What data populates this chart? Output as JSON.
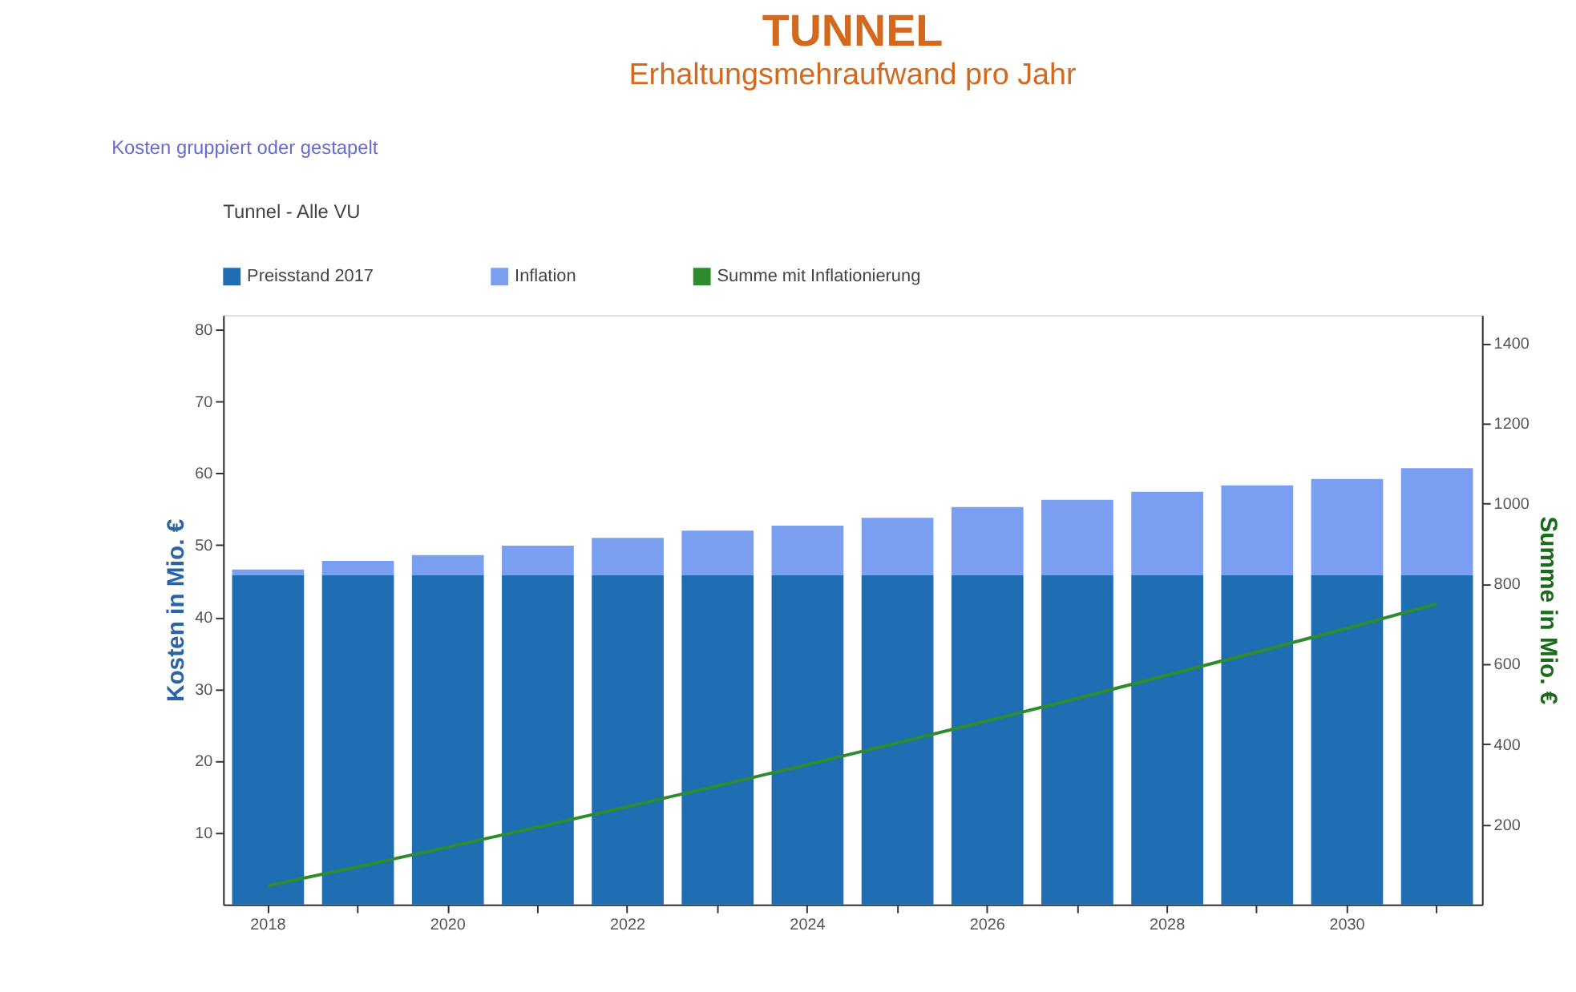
{
  "chart_data": {
    "type": "bar",
    "title": "TUNNEL",
    "subtitle": "Erhaltungsmehraufwand pro Jahr",
    "annotations": [
      "Kosten gruppiert oder gestapelt",
      "Tunnel - Alle VU"
    ],
    "ylabel": "Kosten in Mio. €",
    "y2label": "Summe in Mio. €",
    "categories": [
      "2018",
      null,
      "2020",
      null,
      "2022",
      null,
      "2024",
      null,
      "2026",
      null,
      "2028",
      null,
      "2030",
      null
    ],
    "stacked": true,
    "series": [
      {
        "name": "Preisstand 2017",
        "color": "#1f6db3",
        "values": [
          45.8,
          45.8,
          45.8,
          45.8,
          45.8,
          45.8,
          45.8,
          45.8,
          45.8,
          45.8,
          45.8,
          45.8,
          45.8,
          45.8
        ]
      },
      {
        "name": "Inflation",
        "color": "#7b9ff0",
        "values": [
          0.8,
          2.0,
          2.8,
          4.1,
          5.2,
          6.2,
          6.9,
          8.0,
          9.5,
          10.5,
          11.6,
          12.5,
          13.4,
          14.9
        ]
      },
      {
        "name": "Summe mit Inflationierung",
        "type": "line",
        "axis": "y2",
        "color": "#2e8b2e",
        "values": [
          47,
          94,
          143,
          193,
          244,
          296,
          349,
          403,
          458,
          514,
          572,
          630,
          689,
          750
        ]
      }
    ],
    "ylim": [
      0,
      82
    ],
    "yticks": [
      10,
      20,
      30,
      40,
      50,
      60,
      70,
      80
    ],
    "y2lim": [
      0,
      1470
    ],
    "y2ticks": [
      200,
      400,
      600,
      800,
      1000,
      1200,
      1400
    ],
    "legend": "top",
    "grid": false
  }
}
